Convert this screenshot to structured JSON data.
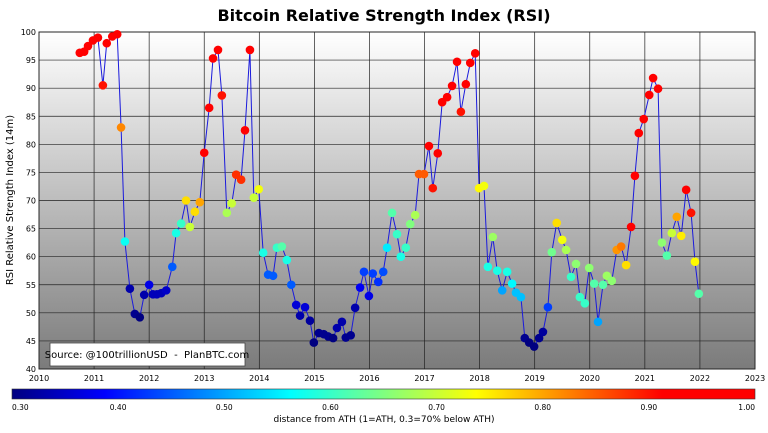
{
  "chart_data": {
    "type": "scatter",
    "title": "Bitcoin Relative Strength Index (RSI)",
    "xlabel": "",
    "ylabel": "RSI Relative Strength Index (14m)",
    "xlim": [
      2010,
      2023
    ],
    "ylim": [
      40,
      100
    ],
    "xticks": [
      "2010",
      "2011",
      "2012",
      "2013",
      "2014",
      "2015",
      "2016",
      "2017",
      "2018",
      "2019",
      "2020",
      "2021",
      "2022",
      "2023"
    ],
    "yticks": [
      "40",
      "45",
      "50",
      "55",
      "60",
      "65",
      "70",
      "75",
      "80",
      "85",
      "90",
      "95",
      "100"
    ],
    "grid": true,
    "line_color": "#1a1adc",
    "annotation": "Source: @100trillionUSD  -  PlanBTC.com",
    "colorbar": {
      "label": "distance from ATH (1=ATH, 0.3=70% below ATH)",
      "range": [
        0.3,
        1.0
      ],
      "colormap": "jet",
      "ticks": [
        "0.30",
        "0.40",
        "0.50",
        "0.60",
        "0.70",
        "0.80",
        "0.90",
        "1.00"
      ]
    },
    "points_columns": [
      "year",
      "rsi",
      "distance_from_ath"
    ],
    "points": [
      [
        2010.74,
        96.3,
        1.0
      ],
      [
        2010.82,
        96.5,
        1.0
      ],
      [
        2010.89,
        97.5,
        1.0
      ],
      [
        2010.98,
        98.5,
        1.0
      ],
      [
        2011.07,
        99.0,
        1.0
      ],
      [
        2011.16,
        90.5,
        0.9
      ],
      [
        2011.23,
        98.0,
        1.0
      ],
      [
        2011.33,
        99.2,
        1.0
      ],
      [
        2011.42,
        99.6,
        1.0
      ],
      [
        2011.49,
        83.0,
        0.82
      ],
      [
        2011.56,
        62.7,
        0.57
      ],
      [
        2011.65,
        54.3,
        0.33
      ],
      [
        2011.74,
        49.8,
        0.31
      ],
      [
        2011.83,
        49.2,
        0.3
      ],
      [
        2011.91,
        53.2,
        0.33
      ],
      [
        2012.0,
        55.0,
        0.37
      ],
      [
        2012.07,
        53.3,
        0.34
      ],
      [
        2012.14,
        53.3,
        0.34
      ],
      [
        2012.22,
        53.5,
        0.34
      ],
      [
        2012.31,
        54.0,
        0.35
      ],
      [
        2012.42,
        58.2,
        0.45
      ],
      [
        2012.49,
        64.2,
        0.58
      ],
      [
        2012.58,
        65.9,
        0.6
      ],
      [
        2012.67,
        70.0,
        0.76
      ],
      [
        2012.74,
        65.3,
        0.7
      ],
      [
        2012.83,
        68.0,
        0.76
      ],
      [
        2012.92,
        69.7,
        0.8
      ],
      [
        2013.0,
        78.5,
        0.97
      ],
      [
        2013.09,
        86.5,
        1.0
      ],
      [
        2013.16,
        95.3,
        1.0
      ],
      [
        2013.25,
        96.8,
        1.0
      ],
      [
        2013.32,
        88.7,
        0.9
      ],
      [
        2013.41,
        67.8,
        0.68
      ],
      [
        2013.5,
        69.5,
        0.7
      ],
      [
        2013.58,
        74.6,
        0.88
      ],
      [
        2013.67,
        73.7,
        0.88
      ],
      [
        2013.74,
        82.5,
        0.98
      ],
      [
        2013.83,
        96.8,
        1.0
      ],
      [
        2013.9,
        70.5,
        0.7
      ],
      [
        2013.99,
        72.0,
        0.73
      ],
      [
        2014.07,
        60.7,
        0.58
      ],
      [
        2014.16,
        56.8,
        0.45
      ],
      [
        2014.25,
        56.6,
        0.45
      ],
      [
        2014.32,
        61.6,
        0.6
      ],
      [
        2014.41,
        61.8,
        0.62
      ],
      [
        2014.5,
        59.4,
        0.58
      ],
      [
        2014.58,
        55.0,
        0.45
      ],
      [
        2014.67,
        51.4,
        0.36
      ],
      [
        2014.74,
        49.5,
        0.33
      ],
      [
        2014.83,
        51.0,
        0.36
      ],
      [
        2014.92,
        48.6,
        0.32
      ],
      [
        2014.99,
        44.7,
        0.3
      ],
      [
        2015.08,
        46.4,
        0.31
      ],
      [
        2015.17,
        46.2,
        0.31
      ],
      [
        2015.25,
        45.8,
        0.31
      ],
      [
        2015.34,
        45.5,
        0.3
      ],
      [
        2015.41,
        47.3,
        0.33
      ],
      [
        2015.5,
        48.4,
        0.33
      ],
      [
        2015.57,
        45.6,
        0.31
      ],
      [
        2015.66,
        46.0,
        0.31
      ],
      [
        2015.74,
        50.9,
        0.33
      ],
      [
        2015.83,
        54.5,
        0.38
      ],
      [
        2015.9,
        57.3,
        0.43
      ],
      [
        2015.99,
        53.0,
        0.37
      ],
      [
        2016.06,
        57.0,
        0.43
      ],
      [
        2016.16,
        55.5,
        0.42
      ],
      [
        2016.25,
        57.3,
        0.44
      ],
      [
        2016.32,
        61.6,
        0.55
      ],
      [
        2016.41,
        67.8,
        0.62
      ],
      [
        2016.5,
        64.0,
        0.6
      ],
      [
        2016.57,
        60.0,
        0.58
      ],
      [
        2016.66,
        61.6,
        0.6
      ],
      [
        2016.74,
        65.8,
        0.65
      ],
      [
        2016.83,
        67.4,
        0.68
      ],
      [
        2016.9,
        74.7,
        0.85
      ],
      [
        2016.99,
        74.7,
        0.85
      ],
      [
        2017.08,
        79.7,
        1.0
      ],
      [
        2017.15,
        72.2,
        0.9
      ],
      [
        2017.24,
        78.4,
        1.0
      ],
      [
        2017.32,
        87.5,
        1.0
      ],
      [
        2017.41,
        88.4,
        1.0
      ],
      [
        2017.5,
        90.4,
        1.0
      ],
      [
        2017.59,
        94.7,
        1.0
      ],
      [
        2017.66,
        85.8,
        0.9
      ],
      [
        2017.75,
        90.7,
        1.0
      ],
      [
        2017.83,
        94.5,
        1.0
      ],
      [
        2017.92,
        96.2,
        1.0
      ],
      [
        2017.99,
        72.2,
        0.74
      ],
      [
        2018.08,
        72.6,
        0.73
      ],
      [
        2018.15,
        58.2,
        0.58
      ],
      [
        2018.24,
        63.5,
        0.67
      ],
      [
        2018.32,
        57.5,
        0.58
      ],
      [
        2018.41,
        54.0,
        0.5
      ],
      [
        2018.5,
        57.3,
        0.58
      ],
      [
        2018.59,
        55.2,
        0.56
      ],
      [
        2018.66,
        53.6,
        0.52
      ],
      [
        2018.75,
        52.8,
        0.52
      ],
      [
        2018.82,
        45.5,
        0.31
      ],
      [
        2018.9,
        44.7,
        0.3
      ],
      [
        2018.99,
        44.0,
        0.3
      ],
      [
        2019.08,
        45.5,
        0.31
      ],
      [
        2019.15,
        46.6,
        0.32
      ],
      [
        2019.24,
        51.0,
        0.43
      ],
      [
        2019.31,
        60.8,
        0.64
      ],
      [
        2019.4,
        66.0,
        0.76
      ],
      [
        2019.5,
        63.0,
        0.73
      ],
      [
        2019.57,
        61.2,
        0.68
      ],
      [
        2019.66,
        56.4,
        0.6
      ],
      [
        2019.75,
        58.7,
        0.66
      ],
      [
        2019.82,
        52.8,
        0.6
      ],
      [
        2019.91,
        51.7,
        0.6
      ],
      [
        2019.99,
        58.0,
        0.66
      ],
      [
        2020.08,
        55.2,
        0.62
      ],
      [
        2020.15,
        48.4,
        0.5
      ],
      [
        2020.24,
        55.0,
        0.62
      ],
      [
        2020.31,
        56.6,
        0.67
      ],
      [
        2020.4,
        55.7,
        0.66
      ],
      [
        2020.49,
        61.2,
        0.81
      ],
      [
        2020.57,
        61.8,
        0.83
      ],
      [
        2020.66,
        58.5,
        0.76
      ],
      [
        2020.75,
        65.3,
        0.97
      ],
      [
        2020.82,
        74.4,
        1.0
      ],
      [
        2020.89,
        82.0,
        1.0
      ],
      [
        2020.98,
        84.5,
        1.0
      ],
      [
        2021.08,
        88.8,
        1.0
      ],
      [
        2021.15,
        91.8,
        1.0
      ],
      [
        2021.24,
        89.9,
        1.0
      ],
      [
        2021.31,
        62.5,
        0.66
      ],
      [
        2021.4,
        60.2,
        0.62
      ],
      [
        2021.49,
        64.2,
        0.7
      ],
      [
        2021.58,
        67.1,
        0.8
      ],
      [
        2021.66,
        63.7,
        0.75
      ],
      [
        2021.75,
        71.9,
        1.0
      ],
      [
        2021.84,
        67.8,
        0.9
      ],
      [
        2021.91,
        59.1,
        0.74
      ],
      [
        2021.98,
        53.4,
        0.62
      ]
    ]
  }
}
